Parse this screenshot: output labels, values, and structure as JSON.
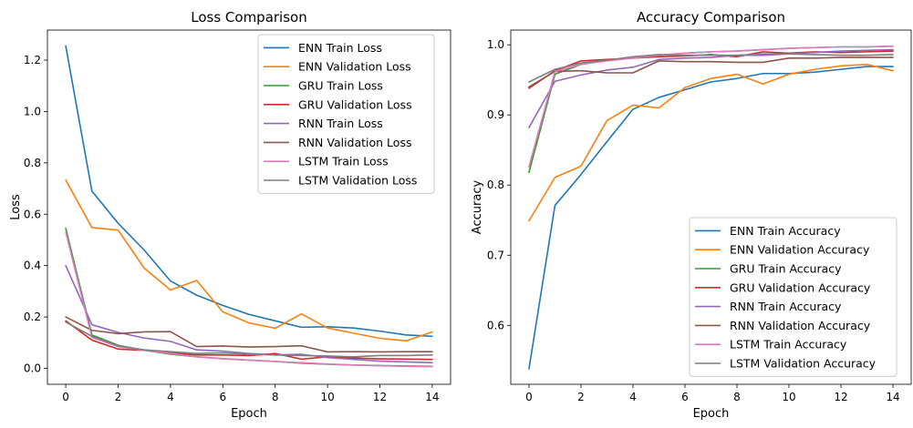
{
  "chart_data": [
    {
      "type": "line",
      "title": "Loss Comparison",
      "xlabel": "Epoch",
      "ylabel": "Loss",
      "xlim": [
        -0.7,
        14.7
      ],
      "ylim": [
        -0.062,
        1.317
      ],
      "xticks": [
        0,
        2,
        4,
        6,
        8,
        10,
        12,
        14
      ],
      "yticks": [
        0.0,
        0.2,
        0.4,
        0.6,
        0.8,
        1.0,
        1.2
      ],
      "ytick_labels": [
        "0.0",
        "0.2",
        "0.4",
        "0.6",
        "0.8",
        "1.0",
        "1.2"
      ],
      "grid": false,
      "legend_position": "top-right",
      "x": [
        0,
        1,
        2,
        3,
        4,
        5,
        6,
        7,
        8,
        9,
        10,
        11,
        12,
        13,
        14
      ],
      "series": [
        {
          "name": "ENN Train Loss",
          "color": "#1f77b4",
          "values": [
            1.255,
            0.69,
            0.565,
            0.46,
            0.34,
            0.285,
            0.245,
            0.21,
            0.185,
            0.16,
            0.162,
            0.157,
            0.145,
            0.13,
            0.125
          ]
        },
        {
          "name": "ENN Validation Loss",
          "color": "#ff7f0e",
          "values": [
            0.733,
            0.548,
            0.538,
            0.39,
            0.305,
            0.342,
            0.22,
            0.177,
            0.156,
            0.212,
            0.157,
            0.137,
            0.117,
            0.107,
            0.142
          ]
        },
        {
          "name": "GRU Train Loss",
          "color": "#2ca02c",
          "values": [
            0.545,
            0.13,
            0.09,
            0.07,
            0.055,
            0.045,
            0.038,
            0.032,
            0.027,
            0.02,
            0.016,
            0.013,
            0.011,
            0.009,
            0.008
          ]
        },
        {
          "name": "GRU Validation Loss",
          "color": "#d62728",
          "values": [
            0.185,
            0.11,
            0.075,
            0.07,
            0.06,
            0.052,
            0.052,
            0.05,
            0.058,
            0.036,
            0.045,
            0.04,
            0.037,
            0.036,
            0.035
          ]
        },
        {
          "name": "RNN Train Loss",
          "color": "#9467bd",
          "values": [
            0.4,
            0.17,
            0.14,
            0.118,
            0.105,
            0.072,
            0.067,
            0.058,
            0.052,
            0.055,
            0.042,
            0.035,
            0.028,
            0.025,
            0.022
          ]
        },
        {
          "name": "RNN Validation Loss",
          "color": "#8c564b",
          "values": [
            0.2,
            0.148,
            0.135,
            0.142,
            0.143,
            0.085,
            0.087,
            0.083,
            0.085,
            0.088,
            0.064,
            0.065,
            0.064,
            0.065,
            0.065
          ]
        },
        {
          "name": "LSTM Train Loss",
          "color": "#e377c2",
          "values": [
            0.53,
            0.12,
            0.085,
            0.07,
            0.058,
            0.045,
            0.037,
            0.032,
            0.027,
            0.022,
            0.017,
            0.013,
            0.01,
            0.008,
            0.007
          ]
        },
        {
          "name": "LSTM Validation Loss",
          "color": "#7f7f7f",
          "values": [
            0.18,
            0.125,
            0.088,
            0.072,
            0.065,
            0.058,
            0.06,
            0.055,
            0.052,
            0.05,
            0.048,
            0.045,
            0.05,
            0.05,
            0.052
          ]
        }
      ]
    },
    {
      "type": "line",
      "title": "Accuracy Comparison",
      "xlabel": "Epoch",
      "ylabel": "Accuracy",
      "xlim": [
        -0.7,
        14.7
      ],
      "ylim": [
        0.516,
        1.021
      ],
      "xticks": [
        0,
        2,
        4,
        6,
        8,
        10,
        12,
        14
      ],
      "yticks": [
        0.6,
        0.7,
        0.8,
        0.9,
        1.0
      ],
      "ytick_labels": [
        "0.6",
        "0.7",
        "0.8",
        "0.9",
        "1.0"
      ],
      "grid": false,
      "legend_position": "bottom-right",
      "x": [
        0,
        1,
        2,
        3,
        4,
        5,
        6,
        7,
        8,
        9,
        10,
        11,
        12,
        13,
        14
      ],
      "series": [
        {
          "name": "ENN Train Accuracy",
          "color": "#1f77b4",
          "values": [
            0.538,
            0.771,
            0.815,
            0.862,
            0.908,
            0.925,
            0.936,
            0.947,
            0.952,
            0.959,
            0.959,
            0.961,
            0.965,
            0.969,
            0.969
          ]
        },
        {
          "name": "ENN Validation Accuracy",
          "color": "#ff7f0e",
          "values": [
            0.749,
            0.811,
            0.827,
            0.892,
            0.914,
            0.91,
            0.939,
            0.952,
            0.958,
            0.944,
            0.958,
            0.965,
            0.97,
            0.972,
            0.963
          ]
        },
        {
          "name": "GRU Train Accuracy",
          "color": "#2ca02c",
          "values": [
            0.818,
            0.958,
            0.972,
            0.978,
            0.982,
            0.985,
            0.988,
            0.99,
            0.991,
            0.993,
            0.995,
            0.996,
            0.997,
            0.997,
            0.998
          ]
        },
        {
          "name": "GRU Validation Accuracy",
          "color": "#d62728",
          "values": [
            0.938,
            0.963,
            0.977,
            0.979,
            0.981,
            0.983,
            0.984,
            0.986,
            0.983,
            0.99,
            0.988,
            0.99,
            0.989,
            0.99,
            0.991
          ]
        },
        {
          "name": "RNN Train Accuracy",
          "color": "#9467bd",
          "values": [
            0.882,
            0.948,
            0.957,
            0.964,
            0.968,
            0.979,
            0.981,
            0.982,
            0.985,
            0.985,
            0.987,
            0.989,
            0.991,
            0.992,
            0.993
          ]
        },
        {
          "name": "RNN Validation Accuracy",
          "color": "#8c564b",
          "values": [
            0.94,
            0.962,
            0.963,
            0.96,
            0.96,
            0.977,
            0.976,
            0.976,
            0.975,
            0.975,
            0.981,
            0.981,
            0.982,
            0.982,
            0.982
          ]
        },
        {
          "name": "LSTM Train Accuracy",
          "color": "#e377c2",
          "values": [
            0.826,
            0.962,
            0.972,
            0.977,
            0.981,
            0.985,
            0.988,
            0.99,
            0.991,
            0.993,
            0.995,
            0.996,
            0.997,
            0.997,
            0.998
          ]
        },
        {
          "name": "LSTM Validation Accuracy",
          "color": "#7f7f7f",
          "values": [
            0.947,
            0.965,
            0.974,
            0.978,
            0.983,
            0.986,
            0.985,
            0.985,
            0.985,
            0.987,
            0.987,
            0.986,
            0.985,
            0.985,
            0.986
          ]
        }
      ]
    }
  ]
}
